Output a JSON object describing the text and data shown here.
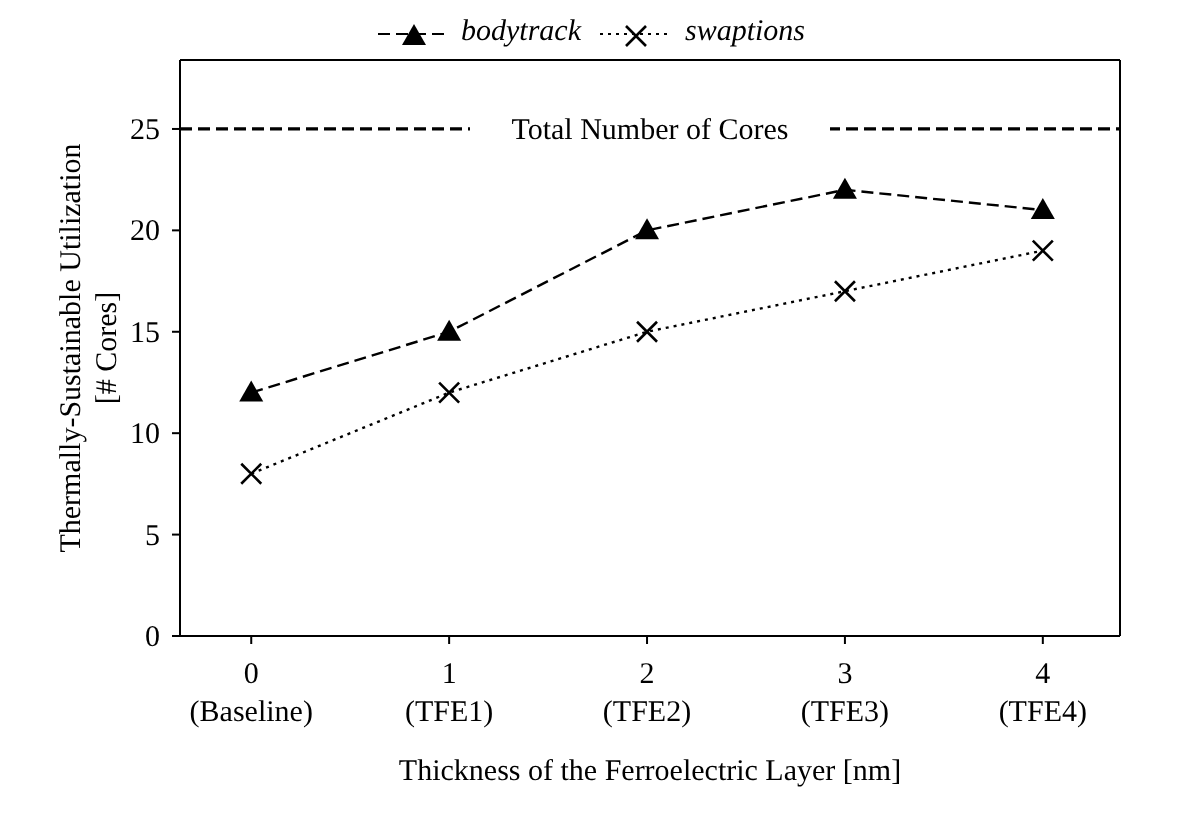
{
  "chart_data": {
    "type": "line",
    "xlabel": "Thickness of the Ferroelectric Layer [nm]",
    "ylabel": "Thermally-Sustainable Utilization\n[# Cores]",
    "categories": [
      "0\n(Baseline)",
      "1\n(TFE1)",
      "2\n(TFE2)",
      "3\n(TFE3)",
      "4\n(TFE4)"
    ],
    "ylim": [
      0,
      28.4
    ],
    "yticks": [
      0,
      5,
      10,
      15,
      20,
      25
    ],
    "series": [
      {
        "name": "bodytrack",
        "color": "#000000",
        "values": [
          12,
          15,
          20,
          22,
          21
        ],
        "marker": "triangle",
        "line_style": "dashed"
      },
      {
        "name": "swaptions",
        "color": "#000000",
        "values": [
          8,
          12,
          15,
          17,
          19
        ],
        "marker": "cross",
        "line_style": "dotted"
      }
    ],
    "ref_lines": [
      {
        "axis": "y",
        "value": 25,
        "label": "Total Number of Cores",
        "color": "#000000",
        "line_style": "dashed"
      }
    ],
    "legend": "top",
    "grid": false
  }
}
